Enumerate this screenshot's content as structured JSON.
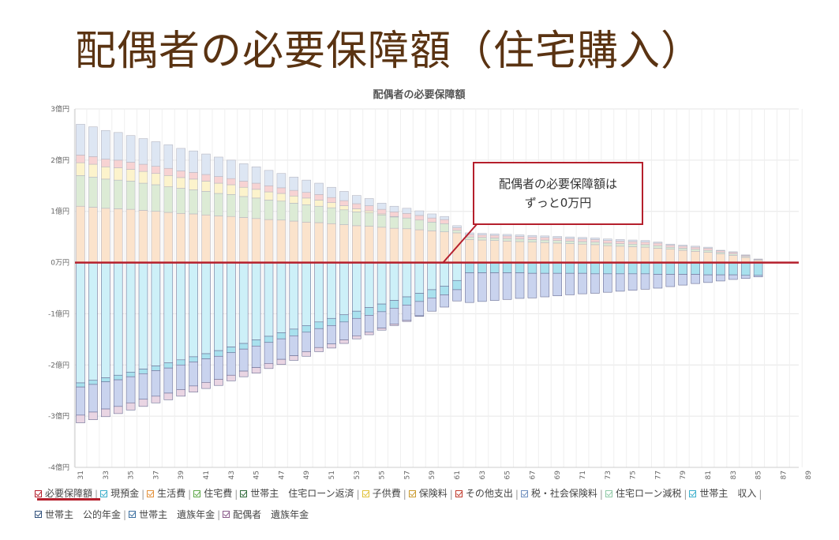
{
  "slide_title": "配偶者の必要保障額（住宅購入）",
  "chart_data": {
    "type": "bar",
    "stacked": true,
    "title": "配偶者の必要保障額",
    "y_ticks": [
      "3億円",
      "2億円",
      "1億円",
      "0万円",
      "-1億円",
      "-2億円",
      "-3億円",
      "-4億円"
    ],
    "ylim": [
      -4,
      3
    ],
    "y_unit": "億円",
    "x_ticks": [
      "31",
      "33",
      "35",
      "37",
      "39",
      "41",
      "43",
      "45",
      "47",
      "49",
      "51",
      "53",
      "55",
      "57",
      "59",
      "61",
      "63",
      "65",
      "67",
      "69",
      "71",
      "73",
      "75",
      "77",
      "79",
      "81",
      "83",
      "85",
      "87",
      "89"
    ],
    "x": [
      31,
      32,
      33,
      34,
      35,
      36,
      37,
      38,
      39,
      40,
      41,
      42,
      43,
      44,
      45,
      46,
      47,
      48,
      49,
      50,
      51,
      52,
      53,
      54,
      55,
      56,
      57,
      58,
      59,
      60,
      61,
      62,
      63,
      64,
      65,
      66,
      67,
      68,
      69,
      70,
      71,
      72,
      73,
      74,
      75,
      76,
      77,
      78,
      79,
      80,
      81,
      82,
      83,
      84,
      85
    ],
    "required_coverage": [
      0,
      0,
      0,
      0,
      0,
      0,
      0,
      0,
      0,
      0,
      0,
      0,
      0,
      0,
      0,
      0,
      0,
      0,
      0,
      0,
      0,
      0,
      0,
      0,
      0,
      0,
      0,
      0,
      0,
      0,
      0,
      0,
      0,
      0,
      0,
      0,
      0,
      0,
      0,
      0,
      0,
      0,
      0,
      0,
      0,
      0,
      0,
      0,
      0,
      0,
      0,
      0,
      0,
      0,
      0
    ],
    "expense_series": [
      {
        "name": "生活費",
        "color": "#fbe3cc",
        "values": [
          1.1,
          1.08,
          1.06,
          1.05,
          1.04,
          1.02,
          1.0,
          0.98,
          0.96,
          0.95,
          0.93,
          0.91,
          0.9,
          0.88,
          0.86,
          0.84,
          0.83,
          0.81,
          0.79,
          0.78,
          0.76,
          0.74,
          0.72,
          0.71,
          0.69,
          0.67,
          0.66,
          0.64,
          0.62,
          0.6,
          0.58,
          0.45,
          0.44,
          0.43,
          0.42,
          0.41,
          0.4,
          0.39,
          0.38,
          0.37,
          0.36,
          0.35,
          0.33,
          0.32,
          0.31,
          0.3,
          0.28,
          0.26,
          0.24,
          0.22,
          0.2,
          0.17,
          0.14,
          0.1,
          0.05
        ]
      },
      {
        "name": "住宅費",
        "color": "#dcebd5",
        "values": [
          0.6,
          0.59,
          0.57,
          0.56,
          0.55,
          0.53,
          0.52,
          0.5,
          0.49,
          0.47,
          0.46,
          0.44,
          0.43,
          0.41,
          0.4,
          0.38,
          0.37,
          0.35,
          0.34,
          0.32,
          0.31,
          0.29,
          0.27,
          0.26,
          0.24,
          0.22,
          0.21,
          0.19,
          0.17,
          0.16,
          0.05,
          0.05,
          0.05,
          0.05,
          0.05,
          0.05,
          0.05,
          0.05,
          0.05,
          0.05,
          0.05,
          0.05,
          0.05,
          0.05,
          0.05,
          0.05,
          0.05,
          0.04,
          0.04,
          0.04,
          0.04,
          0.03,
          0.03,
          0.02,
          0.01
        ]
      },
      {
        "name": "子供費",
        "color": "#fcf3cc",
        "values": [
          0.25,
          0.25,
          0.24,
          0.24,
          0.23,
          0.23,
          0.22,
          0.22,
          0.21,
          0.21,
          0.2,
          0.2,
          0.19,
          0.18,
          0.17,
          0.16,
          0.15,
          0.14,
          0.13,
          0.12,
          0.1,
          0.08,
          0.06,
          0.04,
          0.02,
          0.01,
          0,
          0,
          0,
          0,
          0,
          0,
          0,
          0,
          0,
          0,
          0,
          0,
          0,
          0,
          0,
          0,
          0,
          0,
          0,
          0,
          0,
          0,
          0,
          0,
          0,
          0,
          0,
          0,
          0
        ]
      },
      {
        "name": "その他支出",
        "color": "#f7d3d3",
        "values": [
          0.15,
          0.15,
          0.15,
          0.15,
          0.14,
          0.14,
          0.14,
          0.14,
          0.13,
          0.13,
          0.13,
          0.13,
          0.12,
          0.12,
          0.12,
          0.12,
          0.11,
          0.11,
          0.11,
          0.11,
          0.1,
          0.1,
          0.1,
          0.1,
          0.09,
          0.09,
          0.09,
          0.09,
          0.08,
          0.08,
          0.05,
          0.05,
          0.05,
          0.05,
          0.05,
          0.05,
          0.05,
          0.05,
          0.05,
          0.05,
          0.05,
          0.05,
          0.05,
          0.05,
          0.05,
          0.05,
          0.05,
          0.04,
          0.04,
          0.04,
          0.04,
          0.03,
          0.03,
          0.02,
          0.01
        ]
      },
      {
        "name": "税・社会保険料",
        "color": "#dde6f3",
        "values": [
          0.6,
          0.58,
          0.56,
          0.54,
          0.52,
          0.5,
          0.48,
          0.46,
          0.44,
          0.42,
          0.4,
          0.38,
          0.36,
          0.34,
          0.32,
          0.3,
          0.28,
          0.26,
          0.24,
          0.22,
          0.2,
          0.18,
          0.16,
          0.14,
          0.12,
          0.11,
          0.1,
          0.09,
          0.08,
          0.06,
          0.04,
          0.03,
          0.03,
          0.03,
          0.03,
          0.03,
          0.03,
          0.03,
          0.03,
          0.03,
          0.03,
          0.03,
          0.03,
          0.03,
          0.03,
          0.03,
          0.02,
          0.02,
          0.02,
          0.02,
          0.02,
          0.01,
          0.01,
          0.01,
          0
        ]
      }
    ],
    "income_series": [
      {
        "name": "世帯主　収入",
        "color": "#cdf0f8",
        "values": [
          2.35,
          2.3,
          2.25,
          2.2,
          2.14,
          2.08,
          2.02,
          1.96,
          1.9,
          1.84,
          1.78,
          1.72,
          1.65,
          1.58,
          1.51,
          1.44,
          1.37,
          1.3,
          1.23,
          1.16,
          1.09,
          1.02,
          0.95,
          0.88,
          0.81,
          0.74,
          0.67,
          0.6,
          0.53,
          0.46,
          0.35,
          0,
          0,
          0,
          0,
          0,
          0,
          0,
          0,
          0,
          0,
          0,
          0,
          0,
          0,
          0,
          0,
          0,
          0,
          0,
          0,
          0,
          0,
          0,
          0
        ]
      },
      {
        "name": "現預金",
        "color": "#a9e1ee",
        "values": [
          0.08,
          0.08,
          0.08,
          0.09,
          0.09,
          0.09,
          0.09,
          0.1,
          0.1,
          0.1,
          0.1,
          0.11,
          0.11,
          0.11,
          0.12,
          0.12,
          0.12,
          0.13,
          0.13,
          0.13,
          0.14,
          0.14,
          0.14,
          0.15,
          0.15,
          0.15,
          0.16,
          0.16,
          0.16,
          0.17,
          0.18,
          0.2,
          0.2,
          0.2,
          0.2,
          0.2,
          0.21,
          0.21,
          0.21,
          0.21,
          0.21,
          0.22,
          0.22,
          0.22,
          0.22,
          0.22,
          0.23,
          0.23,
          0.23,
          0.23,
          0.24,
          0.24,
          0.24,
          0.25,
          0.25
        ]
      },
      {
        "name": "世帯主　遺族年金",
        "color": "#c9d3ee",
        "values": [
          0.55,
          0.54,
          0.53,
          0.52,
          0.51,
          0.5,
          0.5,
          0.49,
          0.48,
          0.47,
          0.46,
          0.45,
          0.44,
          0.43,
          0.42,
          0.41,
          0.4,
          0.39,
          0.38,
          0.37,
          0.36,
          0.35,
          0.34,
          0.33,
          0.32,
          0.31,
          0.3,
          0.28,
          0.26,
          0.24,
          0.22,
          0.58,
          0.56,
          0.54,
          0.52,
          0.5,
          0.48,
          0.46,
          0.44,
          0.42,
          0.4,
          0.38,
          0.36,
          0.34,
          0.32,
          0.3,
          0.27,
          0.24,
          0.21,
          0.18,
          0.15,
          0.12,
          0.09,
          0.06,
          0.03
        ]
      },
      {
        "name": "配偶者　遺族年金",
        "color": "#e9d5e3",
        "values": [
          0.15,
          0.15,
          0.15,
          0.14,
          0.14,
          0.14,
          0.13,
          0.13,
          0.13,
          0.12,
          0.12,
          0.12,
          0.11,
          0.11,
          0.11,
          0.1,
          0.1,
          0.09,
          0.09,
          0.08,
          0.08,
          0.07,
          0.06,
          0.05,
          0.04,
          0.03,
          0.02,
          0.01,
          0,
          0,
          0,
          0,
          0,
          0,
          0,
          0,
          0,
          0,
          0,
          0,
          0,
          0,
          0,
          0,
          0,
          0,
          0,
          0,
          0,
          0,
          0,
          0,
          0,
          0,
          0
        ]
      }
    ],
    "annotation": {
      "line1": "配偶者の必要保障額は",
      "line2": "ずっと0万円"
    },
    "legend": [
      {
        "label": "必要保障額",
        "color": "#b51f2c"
      },
      {
        "label": "現預金",
        "color": "#3aaecb"
      },
      {
        "label": "生活費",
        "color": "#e3913b"
      },
      {
        "label": "住宅費",
        "color": "#5fa84a"
      },
      {
        "label": "世帯主　住宅ローン返済",
        "color": "#2f6b3a"
      },
      {
        "label": "子供費",
        "color": "#e0c23a"
      },
      {
        "label": "保険料",
        "color": "#c99a2e"
      },
      {
        "label": "その他支出",
        "color": "#c0392b"
      },
      {
        "label": "税・社会保険料",
        "color": "#6f8fbf"
      },
      {
        "label": "住宅ローン減税",
        "color": "#8fc9a6"
      },
      {
        "label": "世帯主　収入",
        "color": "#3aaecb"
      },
      {
        "label": "世帯主　公的年金",
        "color": "#2f4f7a"
      },
      {
        "label": "世帯主　遺族年金",
        "color": "#3b6fa0"
      },
      {
        "label": "配偶者　遺族年金",
        "color": "#8a5a8a"
      }
    ],
    "zero_line_color": "#b51f2c",
    "grid": true
  }
}
